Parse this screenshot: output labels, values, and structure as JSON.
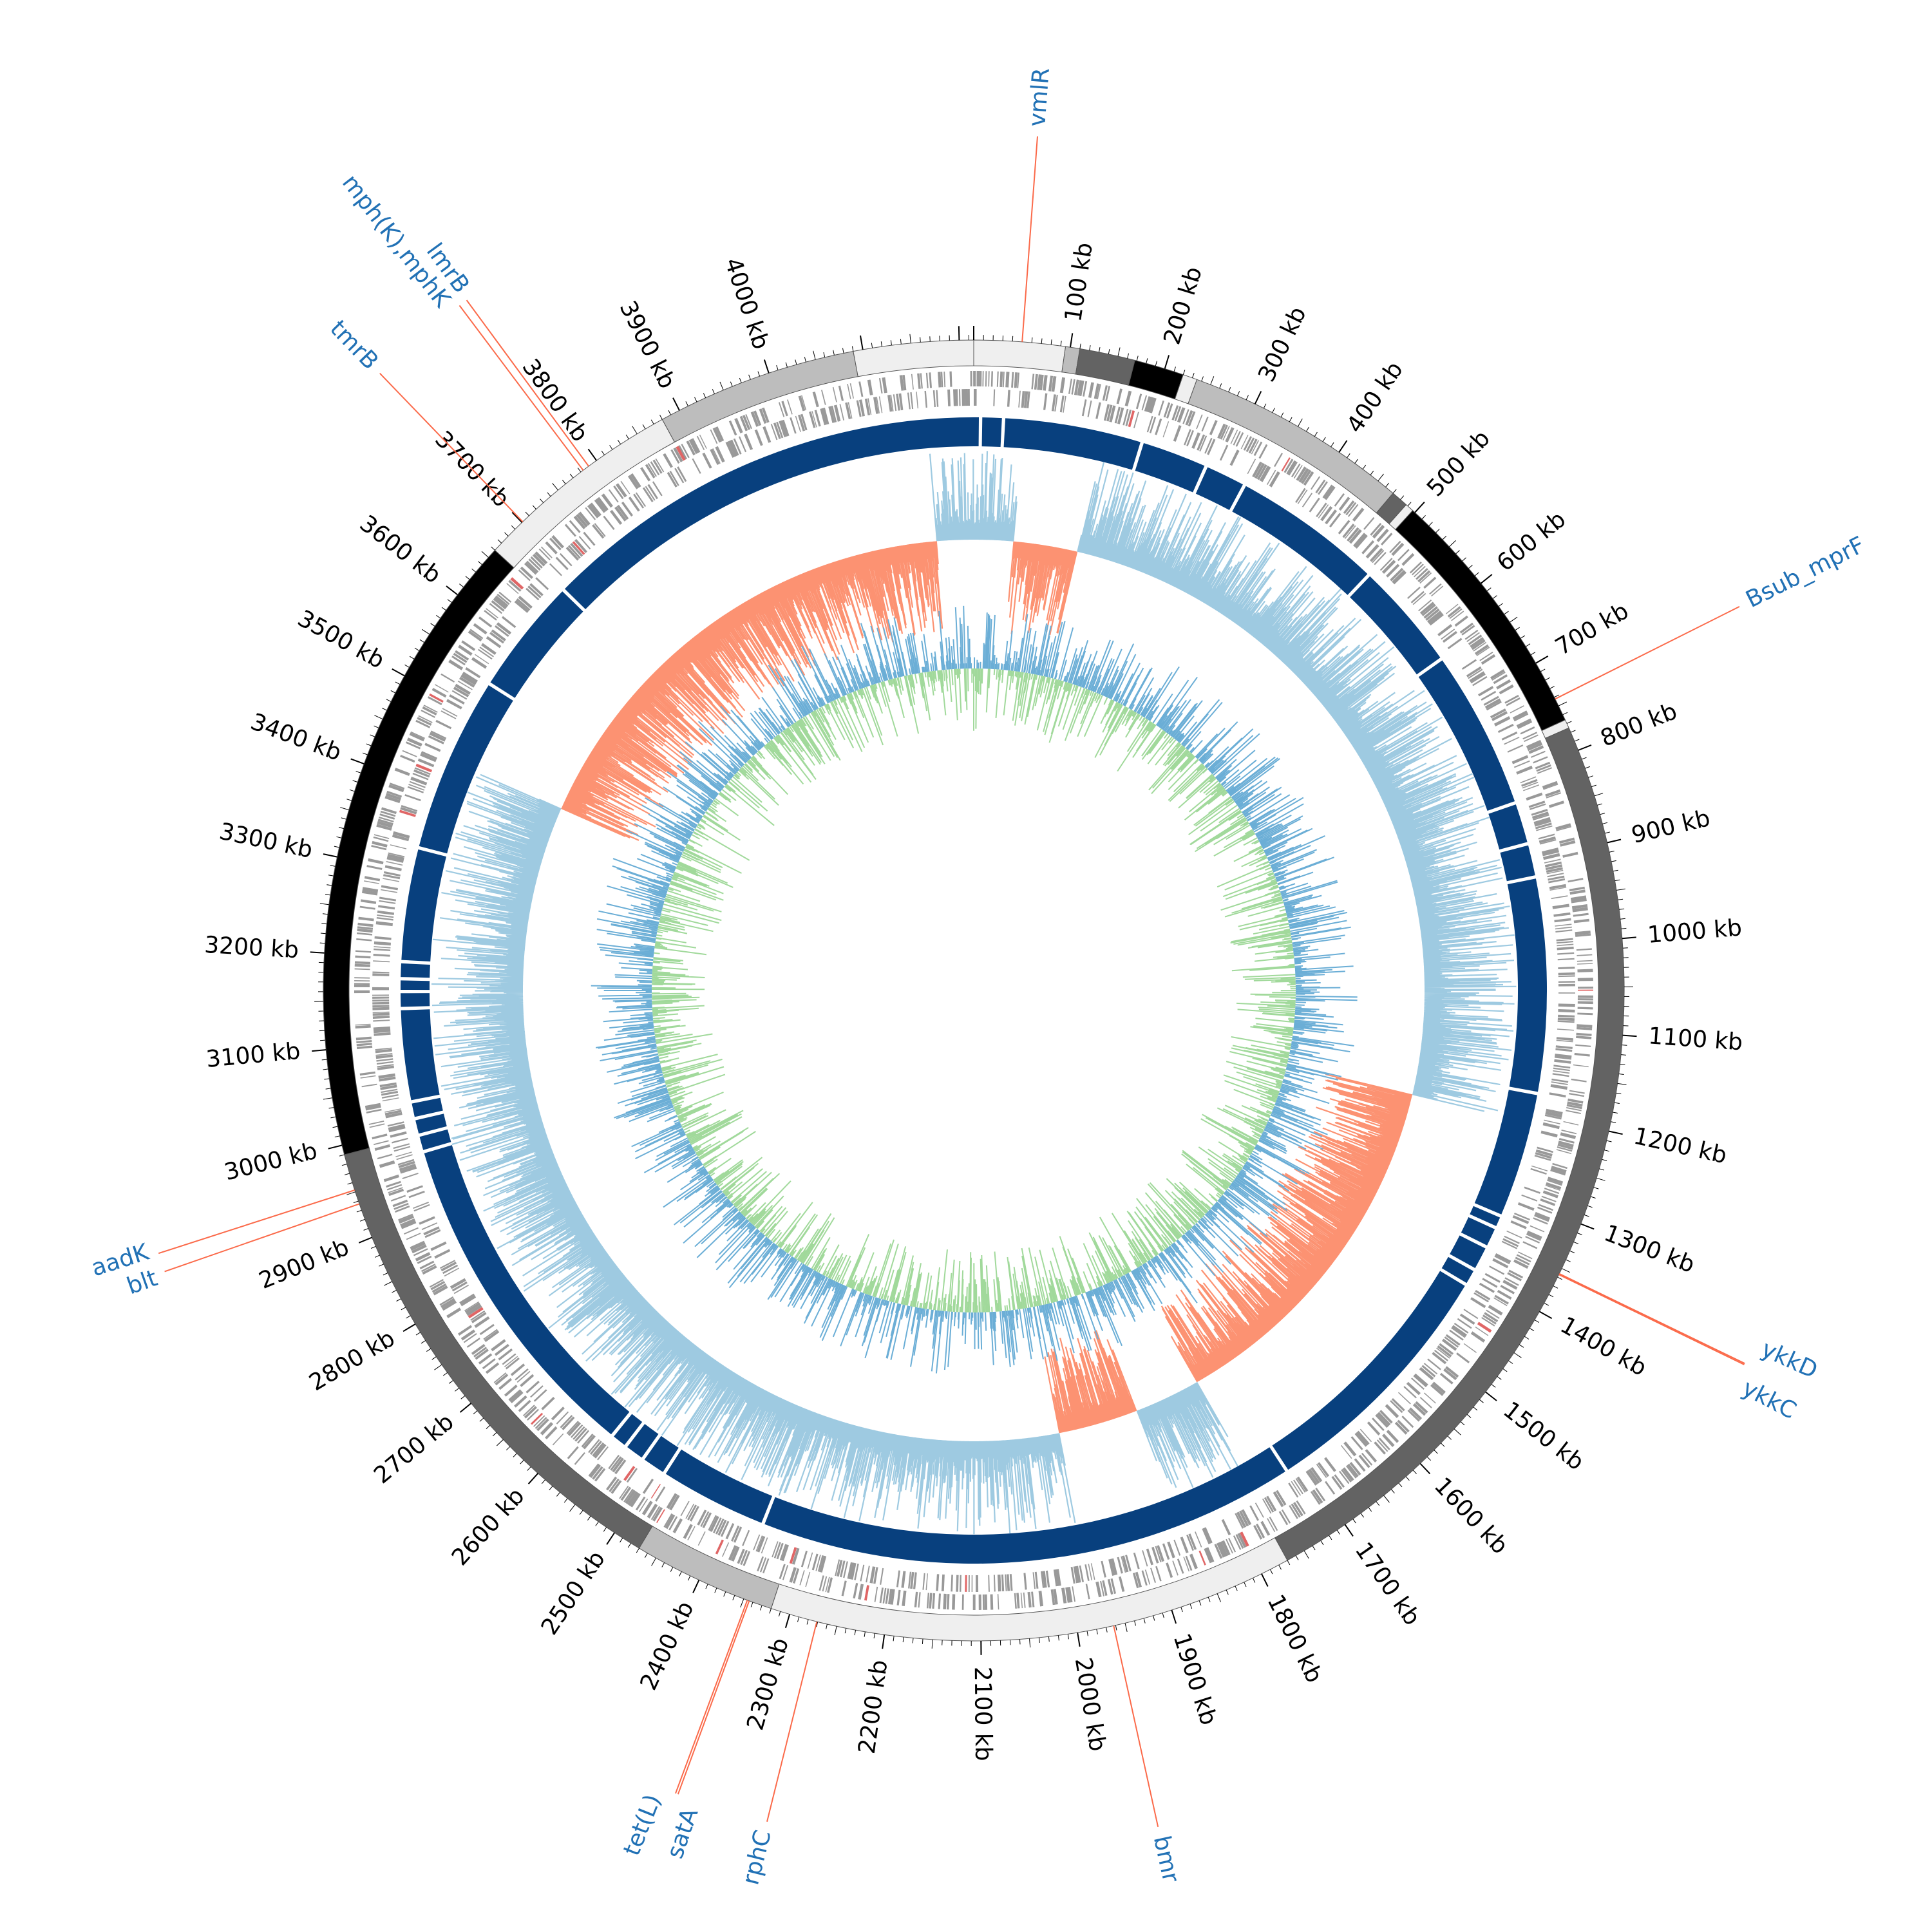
{
  "genome": {
    "length_kb": 4215,
    "tick_labels": [
      "100 kb",
      "200 kb",
      "300 kb",
      "400 kb",
      "500 kb",
      "600 kb",
      "700 kb",
      "800 kb",
      "900 kb",
      "1000 kb",
      "1100 kb",
      "1200 kb",
      "1300 kb",
      "1400 kb",
      "1500 kb",
      "1600 kb",
      "1700 kb",
      "1800 kb",
      "1900 kb",
      "2000 kb",
      "2100 kb",
      "2200 kb",
      "2300 kb",
      "2400 kb",
      "2500 kb",
      "2600 kb",
      "2700 kb",
      "2800 kb",
      "2900 kb",
      "3000 kb",
      "3100 kb",
      "3200 kb",
      "3300 kb",
      "3400 kb",
      "3500 kb",
      "3600 kb",
      "3700 kb",
      "3800 kb",
      "3900 kb",
      "4000 kb"
    ]
  },
  "contig_segments": [
    {
      "start": 0,
      "end": 95,
      "color": "#efefef"
    },
    {
      "start": 95,
      "end": 110,
      "color": "#bdbdbd"
    },
    {
      "start": 110,
      "end": 168,
      "color": "#636363"
    },
    {
      "start": 168,
      "end": 220,
      "color": "#000000"
    },
    {
      "start": 220,
      "end": 235,
      "color": "#efefef"
    },
    {
      "start": 235,
      "end": 470,
      "color": "#bdbdbd"
    },
    {
      "start": 470,
      "end": 488,
      "color": "#636363"
    },
    {
      "start": 488,
      "end": 497,
      "color": "#efefef"
    },
    {
      "start": 497,
      "end": 766,
      "color": "#000000"
    },
    {
      "start": 766,
      "end": 775,
      "color": "#efefef"
    },
    {
      "start": 775,
      "end": 1770,
      "color": "#636363"
    },
    {
      "start": 1770,
      "end": 2320,
      "color": "#efefef"
    },
    {
      "start": 2320,
      "end": 2470,
      "color": "#bdbdbd"
    },
    {
      "start": 2470,
      "end": 2990,
      "color": "#636363"
    },
    {
      "start": 2990,
      "end": 3660,
      "color": "#000000"
    },
    {
      "start": 3660,
      "end": 3880,
      "color": "#efefef"
    },
    {
      "start": 3880,
      "end": 4090,
      "color": "#bdbdbd"
    },
    {
      "start": 4090,
      "end": 4215,
      "color": "#efefef"
    }
  ],
  "blue_ring": {
    "color": "#08407e",
    "gaps": [
      8,
      35,
      200,
      280,
      330,
      510,
      640,
      830,
      880,
      920,
      1175,
      1325,
      1340,
      1365,
      1395,
      1415,
      1720,
      2360,
      2490,
      2520,
      2545,
      2565,
      2970,
      2990,
      3010,
      3030,
      3140,
      3160,
      3175,
      3195,
      3330,
      3540,
      3680
    ]
  },
  "gc_skew": {
    "positive_color": "#9ecae1",
    "negative_color": "#fc9272",
    "positive_ranges": [
      [
        0,
        60
      ],
      [
        155,
        1210
      ],
      [
        1760,
        1860
      ],
      [
        1980,
        3440
      ],
      [
        4160,
        4215
      ]
    ],
    "negative_ranges": [
      [
        60,
        155
      ],
      [
        1210,
        1760
      ],
      [
        1860,
        1980
      ],
      [
        3440,
        4160
      ]
    ]
  },
  "gc_content": {
    "colors": [
      "#a1d99b",
      "#6baed6"
    ]
  },
  "genes": [
    {
      "name": "vmlR",
      "pos": 50
    },
    {
      "name": "Bsub_mprF",
      "pos": 742
    },
    {
      "name": "ykkD",
      "pos": 1356
    },
    {
      "name": "ykkC",
      "pos": 1357
    },
    {
      "name": "bmr",
      "pos": 1962
    },
    {
      "name": "rphC",
      "pos": 2271
    },
    {
      "name": "tet(L)",
      "pos": 2344
    },
    {
      "name": "satA",
      "pos": 2346
    },
    {
      "name": "aadK",
      "pos": 2937
    },
    {
      "name": "blt",
      "pos": 2952
    },
    {
      "name": "tmrB",
      "pos": 3701
    },
    {
      "name": "lmrB",
      "pos": 3783
    },
    {
      "name": "mph(K),mphK",
      "pos": 3790
    }
  ],
  "colors": {
    "gene_label": "#2171b5",
    "leader_line": "#fb6a4a",
    "cds_grey": "#999999",
    "cds_red": "#e06666"
  }
}
